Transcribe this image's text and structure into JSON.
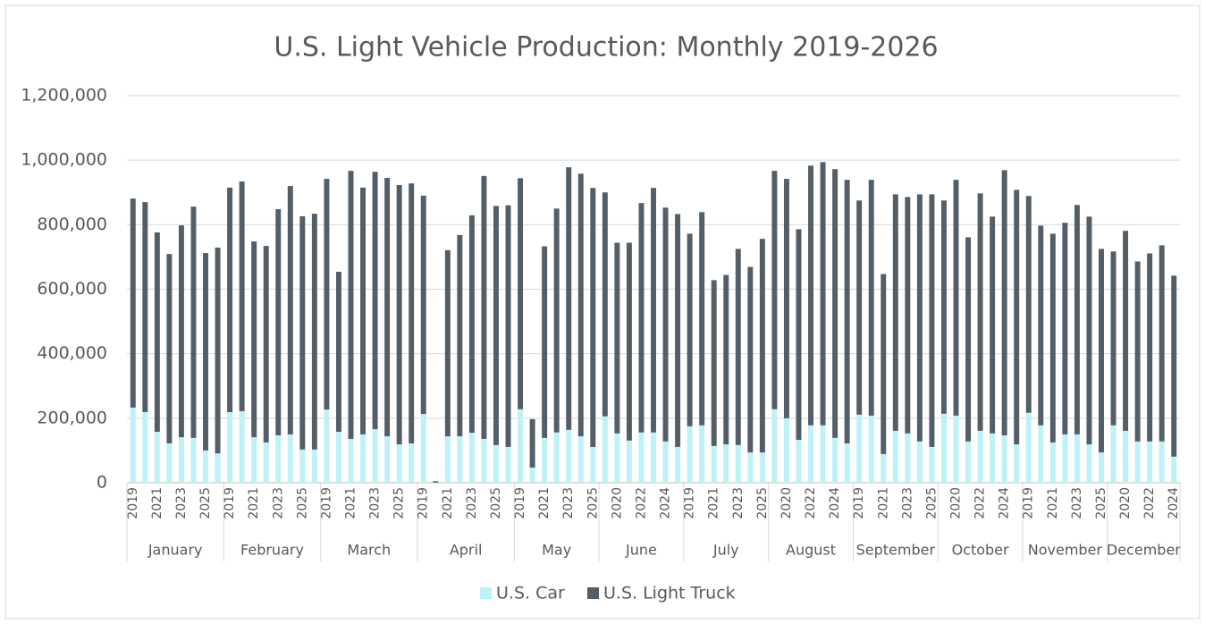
{
  "chart_data": {
    "type": "stacked-bar",
    "title": "U.S. Light Vehicle Production: Monthly 2019-2026",
    "groups": [
      {
        "name": "January",
        "categories": [
          "2019",
          null,
          "2021",
          null,
          "2023",
          null,
          "2025",
          null
        ]
      },
      {
        "name": "February",
        "categories": [
          "2019",
          null,
          "2021",
          null,
          "2023",
          null,
          "2025",
          null
        ]
      },
      {
        "name": "March",
        "categories": [
          "2019",
          null,
          "2021",
          null,
          "2023",
          null,
          "2025",
          null
        ]
      },
      {
        "name": "April",
        "categories": [
          "2019",
          null,
          "2021",
          null,
          "2023",
          null,
          "2025",
          null
        ]
      },
      {
        "name": "May",
        "categories": [
          "2019",
          null,
          "2021",
          null,
          "2023",
          null,
          "2025"
        ]
      },
      {
        "name": "June",
        "categories": [
          null,
          "2020",
          null,
          "2022",
          null,
          "2024",
          null
        ]
      },
      {
        "name": "July",
        "categories": [
          "2019",
          null,
          "2021",
          null,
          "2023",
          null,
          "2025"
        ]
      },
      {
        "name": "August",
        "categories": [
          null,
          "2020",
          null,
          "2022",
          null,
          "2024",
          null
        ]
      },
      {
        "name": "September",
        "categories": [
          "2019",
          null,
          "2021",
          null,
          "2023",
          null,
          "2025"
        ]
      },
      {
        "name": "October",
        "categories": [
          null,
          "2020",
          null,
          "2022",
          null,
          "2024",
          null
        ]
      },
      {
        "name": "November",
        "categories": [
          "2019",
          null,
          "2021",
          null,
          "2023",
          null,
          "2025"
        ]
      },
      {
        "name": "December",
        "categories": [
          null,
          "2020",
          null,
          "2022",
          null,
          "2024"
        ]
      }
    ],
    "series": [
      {
        "name": "U.S. Car",
        "color": "#bdf2f6",
        "values": [
          233000,
          219000,
          158000,
          122000,
          141000,
          139000,
          100000,
          91000,
          219000,
          222000,
          141000,
          125000,
          147000,
          150000,
          103000,
          103000,
          227000,
          158000,
          136000,
          150000,
          166000,
          144000,
          119000,
          122000,
          213000,
          1000,
          144000,
          144000,
          155000,
          136000,
          117000,
          111000,
          228000,
          47000,
          139000,
          156000,
          164000,
          144000,
          111000,
          206000,
          153000,
          131000,
          156000,
          156000,
          128000,
          111000,
          175000,
          178000,
          114000,
          119000,
          117000,
          94000,
          94000,
          228000,
          200000,
          133000,
          178000,
          178000,
          139000,
          122000,
          211000,
          208000,
          89000,
          161000,
          153000,
          128000,
          111000,
          214000,
          208000,
          128000,
          161000,
          153000,
          147000,
          119000,
          217000,
          178000,
          125000,
          150000,
          150000,
          119000,
          94000,
          178000,
          161000,
          128000,
          128000,
          128000,
          81000
        ]
      },
      {
        "name": "U.S. Light Truck",
        "color": "#535e66",
        "values": [
          648000,
          651000,
          618000,
          587000,
          657000,
          717000,
          612000,
          638000,
          696000,
          712000,
          607000,
          609000,
          701000,
          770000,
          723000,
          731000,
          715000,
          496000,
          831000,
          765000,
          798000,
          801000,
          804000,
          806000,
          677000,
          4000,
          577000,
          624000,
          674000,
          815000,
          741000,
          749000,
          716000,
          150000,
          594000,
          694000,
          814000,
          814000,
          803000,
          694000,
          591000,
          613000,
          711000,
          758000,
          725000,
          722000,
          597000,
          661000,
          514000,
          525000,
          608000,
          575000,
          662000,
          739000,
          742000,
          653000,
          805000,
          816000,
          833000,
          817000,
          664000,
          731000,
          558000,
          733000,
          733000,
          766000,
          783000,
          661000,
          731000,
          633000,
          736000,
          672000,
          822000,
          789000,
          672000,
          619000,
          647000,
          656000,
          711000,
          706000,
          631000,
          539000,
          620000,
          558000,
          583000,
          608000,
          561000
        ]
      }
    ],
    "ylim": [
      0,
      1200000
    ],
    "yticks": [
      0,
      {
        "value": 200000,
        "label": "200,000"
      },
      {
        "value": 400000,
        "label": "400,000"
      },
      {
        "value": 600000,
        "label": "600,000"
      },
      {
        "value": 800000,
        "label": "800,000"
      },
      {
        "value": 1000000,
        "label": "1,000,000"
      },
      {
        "value": 1200000,
        "label": "1,200,000"
      }
    ],
    "grid": true,
    "legend": "bottom"
  }
}
